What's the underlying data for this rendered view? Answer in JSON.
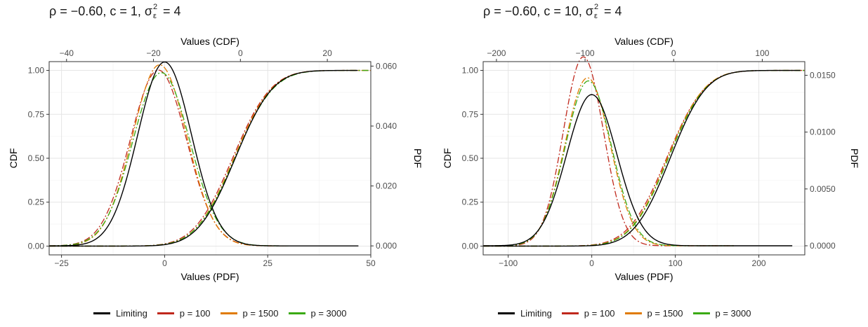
{
  "legend": [
    {
      "label": "Limiting",
      "color": "#000000"
    },
    {
      "label": "p = 100",
      "color": "#c0281c"
    },
    {
      "label": "p = 1500",
      "color": "#e07b00"
    },
    {
      "label": "p = 3000",
      "color": "#3aaa12"
    }
  ],
  "chart_data": [
    {
      "type": "line",
      "title": {
        "rho": "ρ = −0.60",
        "c": "c = 1",
        "sigma": "σ",
        "sup": "2",
        "sub": "ε",
        "rest": " = 4"
      },
      "xlabel_bottom": "Values (PDF)",
      "xlabel_top": "Values (CDF)",
      "ylabel_left": "CDF",
      "ylabel_right": "PDF",
      "xlim_pdf": [
        -28,
        50
      ],
      "xlim_cdf": [
        -44,
        30
      ],
      "ylim_cdf": [
        -0.05,
        1.05
      ],
      "ylim_pdf": [
        -0.003,
        0.0615
      ],
      "x_ticks_bottom": [
        -25,
        0,
        25,
        50
      ],
      "x_ticks_top": [
        -40,
        -20,
        0,
        20
      ],
      "y_ticks_left": [
        0.0,
        0.25,
        0.5,
        0.75,
        1.0
      ],
      "y_ticks_left_labels": [
        "0.00",
        "0.25",
        "0.50",
        "0.75",
        "1.00"
      ],
      "y_ticks_right": [
        0.0,
        0.02,
        0.04,
        0.06
      ],
      "y_ticks_right_labels": [
        "0.000",
        "0.020",
        "0.040",
        "0.060"
      ],
      "pdf_series": [
        {
          "name": "Limiting",
          "mean": 0,
          "sd": 6.5,
          "range": [
            -28,
            47
          ]
        },
        {
          "name": "p = 100",
          "mean": -1.5,
          "sd": 6.8,
          "range": [
            -28,
            30
          ]
        },
        {
          "name": "p = 1500",
          "mean": -1.2,
          "sd": 6.6,
          "range": [
            -28,
            30
          ]
        },
        {
          "name": "p = 3000",
          "mean": -0.8,
          "sd": 6.9,
          "range": [
            -28,
            30
          ]
        }
      ],
      "cdf_series": [
        {
          "name": "Limiting",
          "mean": -1.2,
          "sd": 6.8,
          "range": [
            -44,
            27
          ]
        },
        {
          "name": "p = 100",
          "mean": -1.8,
          "sd": 7.0,
          "range": [
            -44,
            30
          ]
        },
        {
          "name": "p = 1500",
          "mean": -1.5,
          "sd": 6.9,
          "range": [
            -44,
            30
          ]
        },
        {
          "name": "p = 3000",
          "mean": -1.3,
          "sd": 7.0,
          "range": [
            -44,
            30
          ]
        }
      ]
    },
    {
      "type": "line",
      "title": {
        "rho": "ρ = −0.60",
        "c": "c = 10",
        "sigma": "σ",
        "sup": "2",
        "sub": "ε",
        "rest": " = 4"
      },
      "xlabel_bottom": "Values (PDF)",
      "xlabel_top": "Values (CDF)",
      "ylabel_left": "CDF",
      "ylabel_right": "PDF",
      "xlim_pdf": [
        -130,
        255
      ],
      "xlim_cdf": [
        -215,
        148
      ],
      "ylim_cdf": [
        -0.05,
        1.05
      ],
      "ylim_pdf": [
        -0.0008,
        0.0162
      ],
      "x_ticks_bottom": [
        -100,
        0,
        100,
        200
      ],
      "x_ticks_top": [
        -200,
        -100,
        0,
        100
      ],
      "y_ticks_left": [
        0.0,
        0.25,
        0.5,
        0.75,
        1.0
      ],
      "y_ticks_left_labels": [
        "0.00",
        "0.25",
        "0.50",
        "0.75",
        "1.00"
      ],
      "y_ticks_right": [
        0.0,
        0.005,
        0.01,
        0.015
      ],
      "y_ticks_right_labels": [
        "0.0000",
        "0.0050",
        "0.0100",
        "0.0150"
      ],
      "pdf_series": [
        {
          "name": "Limiting",
          "mean": 0,
          "sd": 30,
          "range": [
            -130,
            240
          ]
        },
        {
          "name": "p = 100",
          "mean": -10,
          "sd": 24,
          "range": [
            -130,
            170
          ]
        },
        {
          "name": "p = 1500",
          "mean": -5,
          "sd": 27,
          "range": [
            -130,
            170
          ]
        },
        {
          "name": "p = 3000",
          "mean": -4,
          "sd": 27.5,
          "range": [
            -130,
            170
          ]
        }
      ],
      "cdf_series": [
        {
          "name": "Limiting",
          "mean": -4,
          "sd": 32,
          "range": [
            -215,
            143
          ]
        },
        {
          "name": "p = 100",
          "mean": -8,
          "sd": 34,
          "range": [
            -215,
            148
          ]
        },
        {
          "name": "p = 1500",
          "mean": -7,
          "sd": 33,
          "range": [
            -215,
            148
          ]
        },
        {
          "name": "p = 3000",
          "mean": -6,
          "sd": 33,
          "range": [
            -215,
            148
          ]
        }
      ]
    }
  ]
}
